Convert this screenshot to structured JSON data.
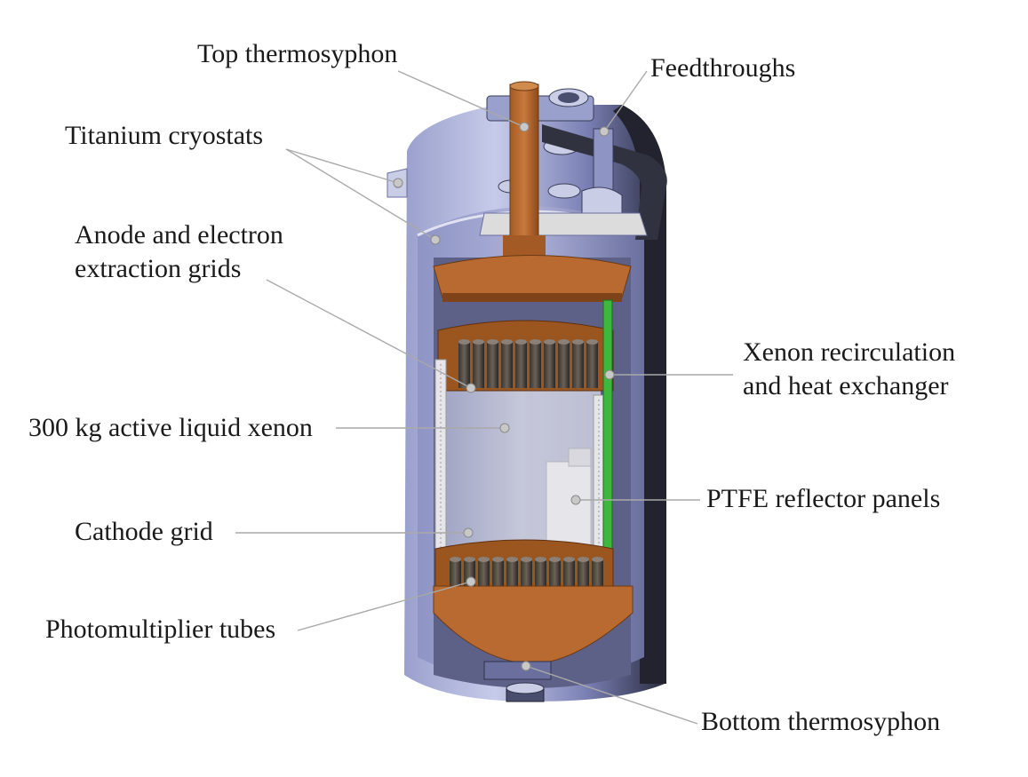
{
  "labels": {
    "top_thermosyphon": "Top thermosyphon",
    "feedthroughs": "Feedthroughs",
    "titanium_cryostats": "Titanium cryostats",
    "anode_grids_line1": "Anode and electron",
    "anode_grids_line2": "extraction grids",
    "xenon_recirculation_line1": "Xenon recirculation",
    "xenon_recirculation_line2": "and heat exchanger",
    "active_liquid_xenon": "300 kg active liquid xenon",
    "ptfe_reflector_panels": "PTFE reflector panels",
    "cathode_grid": "Cathode grid",
    "photomultiplier_tubes": "Photomultiplier tubes",
    "bottom_thermosyphon": "Bottom thermosyphon"
  },
  "colors": {
    "titanium_cryostat": "#7f86b8",
    "titanium_highlight": "#c9cde6",
    "copper": "#b86a30",
    "copper_dark": "#7e4318",
    "ptfe": "#e6e6ea",
    "heat_exchanger": "#3db83d",
    "xenon_volume": "#b9bcd6",
    "leader_line": "#a9a9a9"
  }
}
